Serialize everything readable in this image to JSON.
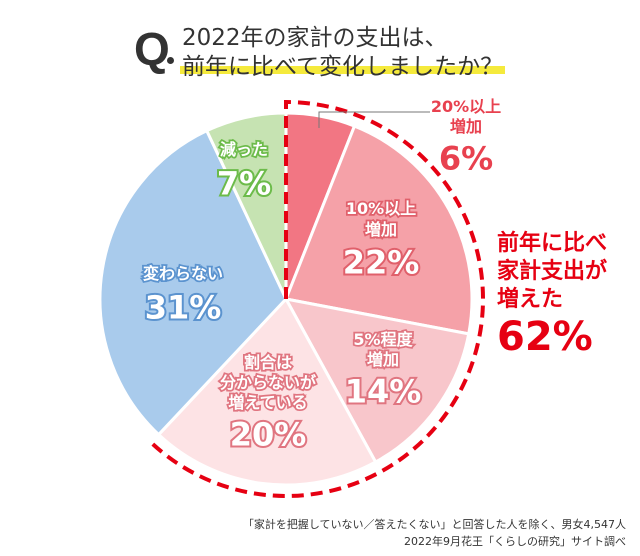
{
  "header": {
    "q_mark": "Q",
    "title_line1": "2022年の家計の支出は、",
    "title_line2": "前年に比べて変化しましたか？"
  },
  "chart_data": {
    "type": "pie",
    "start": "12 o'clock",
    "direction": "clockwise",
    "slices": [
      {
        "label": [
          "20%以上",
          "増加"
        ],
        "value": 6,
        "value_label": "6%",
        "color": "#f27683"
      },
      {
        "label": [
          "10%以上",
          "増加"
        ],
        "value": 22,
        "value_label": "22%",
        "color": "#f5a1a8"
      },
      {
        "label": [
          "5%程度",
          "増加"
        ],
        "value": 14,
        "value_label": "14%",
        "color": "#f8c6cb"
      },
      {
        "label": [
          "割合は",
          "分からないが",
          "増えている"
        ],
        "value": 20,
        "value_label": "20%",
        "color": "#fde3e5"
      },
      {
        "label": [
          "変わらない"
        ],
        "value": 31,
        "value_label": "31%",
        "color": "#a9cbec"
      },
      {
        "label": [
          "減った"
        ],
        "value": 7,
        "value_label": "7%",
        "color": "#c6e3b2"
      }
    ],
    "annotation": {
      "lines": [
        "前年に比べ",
        "家計支出が",
        "増えた"
      ],
      "value_label": "62%",
      "color": "#e60012"
    }
  },
  "footer": {
    "note": "「家計を把握していない／答えたくない」と回答した人を除く、男女4,547人",
    "source": "2022年9月花王「くらしの研究」サイト調べ"
  }
}
